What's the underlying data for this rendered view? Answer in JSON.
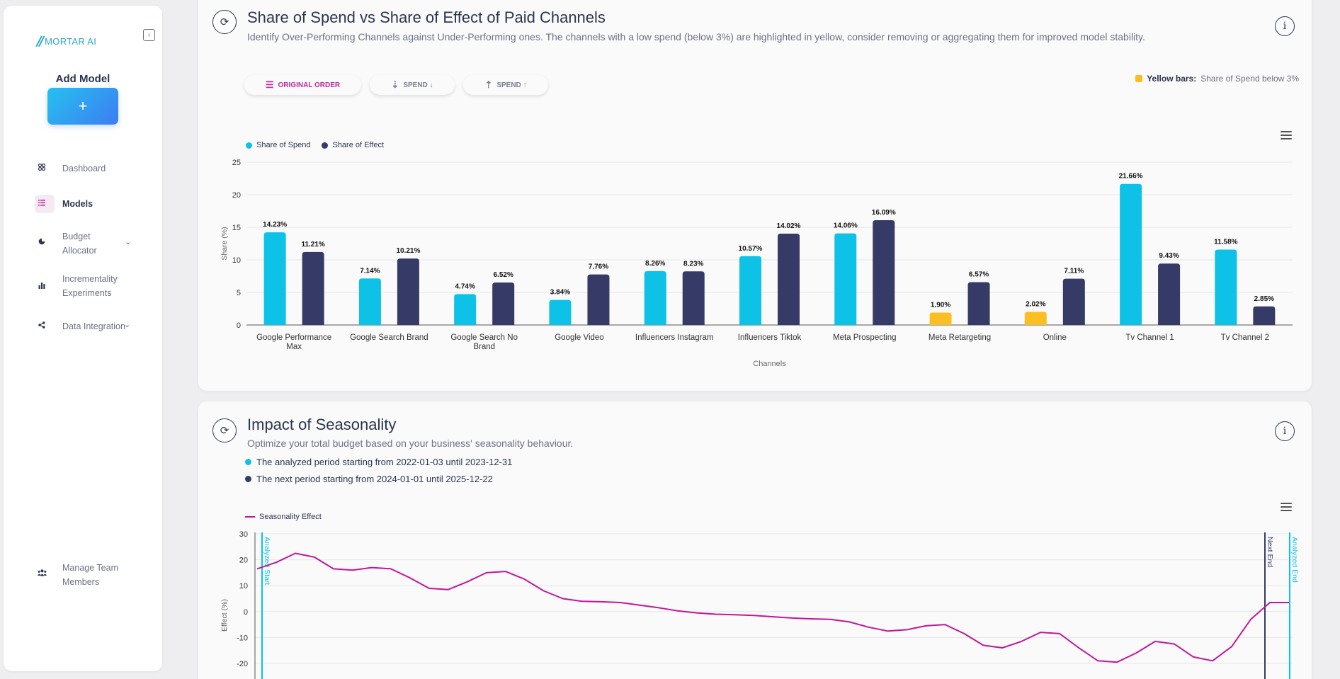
{
  "sidebar": {
    "logo_mark": "//",
    "logo_text": "MORTAR AI",
    "add_model_title": "Add Model",
    "add_model_button": "+",
    "items": [
      {
        "label": "Dashboard",
        "icon": "dashboard-icon"
      },
      {
        "label": "Models",
        "icon": "list-icon",
        "active": true
      },
      {
        "label": "Budget Allocator",
        "icon": "pie-chart-icon",
        "expandable": true
      },
      {
        "label": "Incrementality Experiments",
        "icon": "bar-chart-icon"
      },
      {
        "label": "Data Integration",
        "icon": "share-icon",
        "expandable": true
      },
      {
        "label": "Manage Team Members",
        "icon": "team-icon"
      }
    ]
  },
  "spend_card": {
    "title": "Share of Spend vs Share of Effect of Paid Channels",
    "subtitle": "Identify Over-Performing Channels against Under-Performing ones. The channels with a low spend (below 3%) are highlighted in yellow, consider removing or aggregating them for improved model stability.",
    "sort_buttons": [
      "ORIGINAL ORDER",
      "SPEND ↓",
      "SPEND ↑"
    ],
    "yellow_note_bold": "Yellow bars:",
    "yellow_note_text": "Share of Spend below 3%"
  },
  "seasonality_card": {
    "title": "Impact of Seasonality",
    "subtitle": "Optimize your total budget based on your business' seasonality behaviour.",
    "periods": [
      "The analyzed period starting from 2022-01-03 until 2023-12-31",
      "The next period starting from 2024-01-01 until 2025-12-22"
    ]
  },
  "colors": {
    "spend": "#0ec1e6",
    "effect": "#363a66",
    "low_spend": "#fbbf24",
    "seasonality": "#c0189a",
    "accent": "#c02aa0"
  },
  "chart_data": [
    {
      "type": "bar",
      "xlabel": "Channels",
      "ylabel": "Share (%)",
      "ylim": [
        0,
        25
      ],
      "yticks": [
        0,
        5,
        10,
        15,
        20,
        25
      ],
      "legend": "top-left",
      "categories": [
        "Google Performance Max",
        "Google Search Brand",
        "Google Search No Brand",
        "Google Video",
        "Influencers Instagram",
        "Influencers Tiktok",
        "Meta Prospecting",
        "Meta Retargeting",
        "Online",
        "Tv Channel 1",
        "Tv Channel 2"
      ],
      "series": [
        {
          "name": "Share of Spend",
          "values": [
            14.23,
            7.14,
            4.74,
            3.84,
            8.26,
            10.57,
            14.06,
            1.9,
            2.02,
            21.66,
            11.58
          ],
          "labels": [
            "14.23%",
            "7.14%",
            "4.74%",
            "3.84%",
            "8.26%",
            "10.57%",
            "14.06%",
            "1.90%",
            "2.02%",
            "21.66%",
            "11.58%"
          ]
        },
        {
          "name": "Share of Effect",
          "values": [
            11.21,
            10.21,
            6.52,
            7.76,
            8.23,
            14.02,
            16.09,
            6.57,
            7.11,
            9.43,
            2.85
          ],
          "labels": [
            "11.21%",
            "10.21%",
            "6.52%",
            "7.76%",
            "8.23%",
            "14.02%",
            "16.09%",
            "6.57%",
            "7.11%",
            "9.43%",
            "2.85%"
          ]
        }
      ]
    },
    {
      "type": "line",
      "ylabel": "Effect (%)",
      "ylim": [
        -20,
        30
      ],
      "yticks": [
        30,
        20,
        10,
        0,
        -10,
        -20
      ],
      "legend": "top-left",
      "series": [
        {
          "name": "Seasonality Effect",
          "values": [
            16.5,
            19,
            22.5,
            21,
            16.5,
            16,
            17,
            16.5,
            13,
            9,
            8.5,
            11.5,
            15,
            15.5,
            12.5,
            8,
            5,
            4,
            3.8,
            3.5,
            2.5,
            1.5,
            0.3,
            -0.5,
            -1,
            -1.2,
            -1.5,
            -2,
            -2.5,
            -2.8,
            -3,
            -4,
            -6,
            -7.5,
            -7,
            -5.5,
            -5,
            -8.5,
            -13,
            -14,
            -11.5,
            -8,
            -8.5,
            -14,
            -19,
            -19.5,
            -16,
            -11.5,
            -12.5,
            -17.5,
            -19,
            -13.5,
            -3,
            3.5,
            3.5
          ]
        }
      ],
      "annotations": [
        "Analyzed Start",
        "Next End",
        "Analyzed End"
      ]
    }
  ]
}
